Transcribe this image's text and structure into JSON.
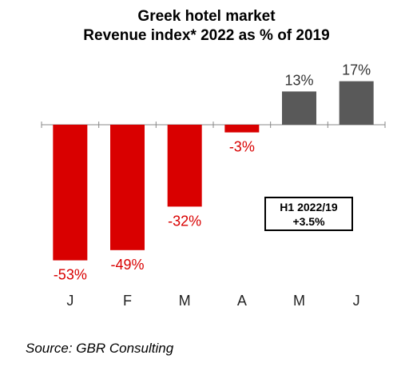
{
  "title": "Greek hotel market",
  "subtitle": "Revenue index* 2022 as % of 2019",
  "summary_box": {
    "line1": "H1 2022/19",
    "line2": "+3.5%"
  },
  "source": "Source: GBR Consulting",
  "colors": {
    "negative": "#d90000",
    "positive": "#595959",
    "axis": "#888888"
  },
  "chart_data": {
    "type": "bar",
    "categories": [
      "J",
      "F",
      "M",
      "A",
      "M",
      "J"
    ],
    "values": [
      -53,
      -49,
      -32,
      -3,
      13,
      17
    ],
    "value_labels": [
      "-53%",
      "-49%",
      "-32%",
      "-3%",
      "13%",
      "17%"
    ],
    "title": "Greek hotel market",
    "subtitle": "Revenue index* 2022 as % of 2019",
    "xlabel": "",
    "ylabel": "",
    "ylim": [
      -55,
      20
    ],
    "grid": false,
    "legend": "none"
  }
}
